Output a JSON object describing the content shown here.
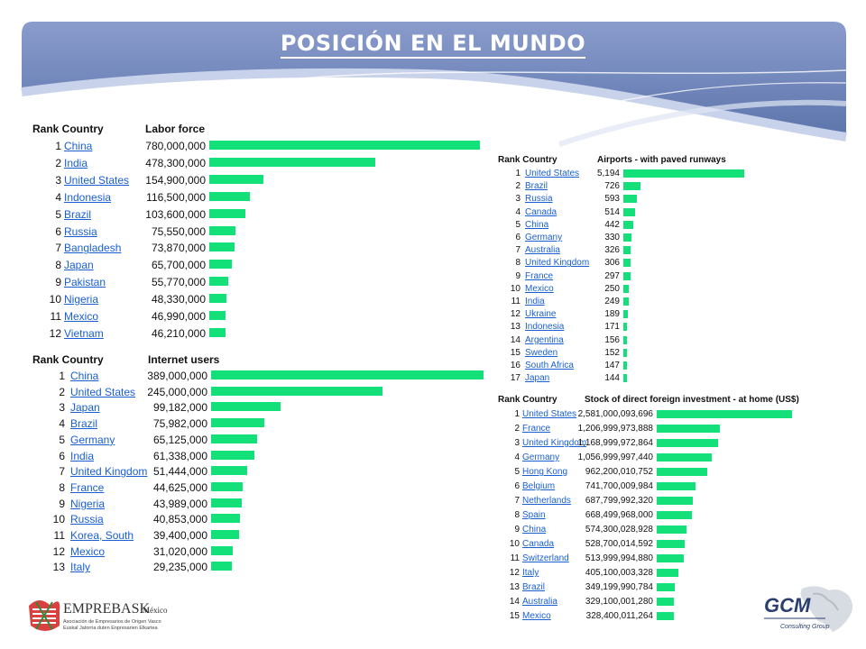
{
  "slide": {
    "title": "POSICIÓN EN EL MUNDO"
  },
  "colors": {
    "banner": "#6f86b8",
    "bar": "#14e07a",
    "link": "#1a5fd1"
  },
  "labor_table": {
    "rank_country_label": "Rank Country",
    "metric_label": "Labor force",
    "rows": [
      {
        "rank": "1",
        "country": "China",
        "value": "780,000,000",
        "num": 780000000
      },
      {
        "rank": "2",
        "country": "India",
        "value": "478,300,000",
        "num": 478300000
      },
      {
        "rank": "3",
        "country": "United States",
        "value": "154,900,000",
        "num": 154900000
      },
      {
        "rank": "4",
        "country": "Indonesia",
        "value": "116,500,000",
        "num": 116500000
      },
      {
        "rank": "5",
        "country": "Brazil",
        "value": "103,600,000",
        "num": 103600000
      },
      {
        "rank": "6",
        "country": "Russia",
        "value": "75,550,000",
        "num": 75550000
      },
      {
        "rank": "7",
        "country": "Bangladesh",
        "value": "73,870,000",
        "num": 73870000
      },
      {
        "rank": "8",
        "country": "Japan",
        "value": "65,700,000",
        "num": 65700000
      },
      {
        "rank": "9",
        "country": "Pakistan",
        "value": "55,770,000",
        "num": 55770000
      },
      {
        "rank": "10",
        "country": "Nigeria",
        "value": "48,330,000",
        "num": 48330000
      },
      {
        "rank": "11",
        "country": "Mexico",
        "value": "46,990,000",
        "num": 46990000
      },
      {
        "rank": "12",
        "country": "Vietnam",
        "value": "46,210,000",
        "num": 46210000
      }
    ]
  },
  "internet_table": {
    "rank_country_label": "Rank Country",
    "metric_label": "Internet users",
    "rows": [
      {
        "rank": "1",
        "country": "China",
        "value": "389,000,000",
        "num": 389000000
      },
      {
        "rank": "2",
        "country": "United States",
        "value": "245,000,000",
        "num": 245000000
      },
      {
        "rank": "3",
        "country": "Japan",
        "value": "99,182,000",
        "num": 99182000
      },
      {
        "rank": "4",
        "country": "Brazil",
        "value": "75,982,000",
        "num": 75982000
      },
      {
        "rank": "5",
        "country": "Germany",
        "value": "65,125,000",
        "num": 65125000
      },
      {
        "rank": "6",
        "country": "India",
        "value": "61,338,000",
        "num": 61338000
      },
      {
        "rank": "7",
        "country": "United Kingdom",
        "value": "51,444,000",
        "num": 51444000
      },
      {
        "rank": "8",
        "country": "France",
        "value": "44,625,000",
        "num": 44625000
      },
      {
        "rank": "9",
        "country": "Nigeria",
        "value": "43,989,000",
        "num": 43989000
      },
      {
        "rank": "10",
        "country": "Russia",
        "value": "40,853,000",
        "num": 40853000
      },
      {
        "rank": "11",
        "country": "Korea, South",
        "value": "39,400,000",
        "num": 39400000
      },
      {
        "rank": "12",
        "country": "Mexico",
        "value": "31,020,000",
        "num": 31020000
      },
      {
        "rank": "13",
        "country": "Italy",
        "value": "29,235,000",
        "num": 29235000
      }
    ]
  },
  "airports_table": {
    "rank_country_label": "Rank Country",
    "metric_label": "Airports - with paved runways",
    "rows": [
      {
        "rank": "1",
        "country": "United States",
        "value": "5,194",
        "num": 5194
      },
      {
        "rank": "2",
        "country": "Brazil",
        "value": "726",
        "num": 726
      },
      {
        "rank": "3",
        "country": "Russia",
        "value": "593",
        "num": 593
      },
      {
        "rank": "4",
        "country": "Canada",
        "value": "514",
        "num": 514
      },
      {
        "rank": "5",
        "country": "China",
        "value": "442",
        "num": 442
      },
      {
        "rank": "6",
        "country": "Germany",
        "value": "330",
        "num": 330
      },
      {
        "rank": "7",
        "country": "Australia",
        "value": "326",
        "num": 326
      },
      {
        "rank": "8",
        "country": "United Kingdom",
        "value": "306",
        "num": 306
      },
      {
        "rank": "9",
        "country": "France",
        "value": "297",
        "num": 297
      },
      {
        "rank": "10",
        "country": "Mexico",
        "value": "250",
        "num": 250
      },
      {
        "rank": "11",
        "country": "India",
        "value": "249",
        "num": 249
      },
      {
        "rank": "12",
        "country": "Ukraine",
        "value": "189",
        "num": 189
      },
      {
        "rank": "13",
        "country": "Indonesia",
        "value": "171",
        "num": 171
      },
      {
        "rank": "14",
        "country": "Argentina",
        "value": "156",
        "num": 156
      },
      {
        "rank": "15",
        "country": "Sweden",
        "value": "152",
        "num": 152
      },
      {
        "rank": "16",
        "country": "South Africa",
        "value": "147",
        "num": 147
      },
      {
        "rank": "17",
        "country": "Japan",
        "value": "144",
        "num": 144
      }
    ]
  },
  "fdi_table": {
    "rank_country_label": "Rank Country",
    "metric_label": "Stock of direct foreign investment - at home (US$)",
    "rows": [
      {
        "rank": "1",
        "country": "United States",
        "value": "2,581,000,093,696",
        "num": 2581000093696
      },
      {
        "rank": "2",
        "country": "France",
        "value": "1,206,999,973,888",
        "num": 1206999973888
      },
      {
        "rank": "3",
        "country": "United Kingdom",
        "value": "1,168,999,972,864",
        "num": 1168999972864
      },
      {
        "rank": "4",
        "country": "Germany",
        "value": "1,056,999,997,440",
        "num": 1056999997440
      },
      {
        "rank": "5",
        "country": "Hong Kong",
        "value": "962,200,010,752",
        "num": 962200010752
      },
      {
        "rank": "6",
        "country": "Belgium",
        "value": "741,700,009,984",
        "num": 741700009984
      },
      {
        "rank": "7",
        "country": "Netherlands",
        "value": "687,799,992,320",
        "num": 687799992320
      },
      {
        "rank": "8",
        "country": "Spain",
        "value": "668,499,968,000",
        "num": 668499968000
      },
      {
        "rank": "9",
        "country": "China",
        "value": "574,300,028,928",
        "num": 574300028928
      },
      {
        "rank": "10",
        "country": "Canada",
        "value": "528,700,014,592",
        "num": 528700014592
      },
      {
        "rank": "11",
        "country": "Switzerland",
        "value": "513,999,994,880",
        "num": 513999994880
      },
      {
        "rank": "12",
        "country": "Italy",
        "value": "405,100,003,328",
        "num": 405100003328
      },
      {
        "rank": "13",
        "country": "Brazil",
        "value": "349,199,990,784",
        "num": 349199990784
      },
      {
        "rank": "14",
        "country": "Australia",
        "value": "329,100,001,280",
        "num": 329100001280
      },
      {
        "rank": "15",
        "country": "Mexico",
        "value": "328,400,011,264",
        "num": 328400011264
      }
    ]
  },
  "logos": {
    "left_brand": "EMPREBASK",
    "left_brand_suffix": "México",
    "left_line1": "Asociación de Empresarios de Origen Vasco",
    "left_line2": "Euskal Jatorria duten Enpresarien Elkartea",
    "right_brand": "GCM",
    "right_sub": "Consulting Group"
  }
}
